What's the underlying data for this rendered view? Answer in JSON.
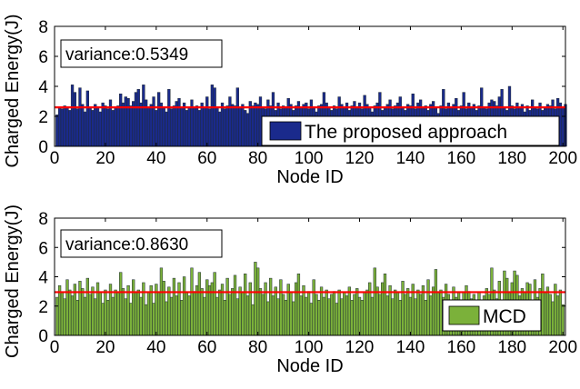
{
  "chart_data": [
    {
      "type": "bar",
      "xlabel": "Node ID",
      "ylabel": "Charged Energy(J)",
      "xlim": [
        0,
        201
      ],
      "ylim": [
        0,
        8
      ],
      "xticks": [
        0,
        20,
        40,
        60,
        80,
        100,
        120,
        140,
        160,
        180,
        200
      ],
      "yticks": [
        0,
        2,
        4,
        6,
        8
      ],
      "annotation": "variance:0.5349",
      "mean_line": 2.6,
      "series": [
        {
          "name": "The proposed approach",
          "color": "#1a2a8c",
          "values": [
            2.1,
            2.6,
            2.5,
            2.7,
            2.6,
            2.4,
            4.1,
            3.6,
            2.5,
            3.9,
            2.8,
            2.3,
            3.7,
            2.6,
            2.4,
            2.8,
            2.6,
            2.3,
            2.9,
            2.7,
            2.5,
            3.1,
            2.4,
            2.6,
            2.7,
            3.5,
            2.9,
            3.3,
            3.2,
            2.7,
            3.0,
            3.6,
            3.8,
            2.9,
            4.1,
            3.1,
            2.6,
            2.8,
            3.3,
            2.4,
            3.6,
            2.9,
            2.6,
            2.3,
            3.8,
            2.5,
            2.7,
            3.0,
            3.2,
            2.6,
            2.9,
            2.4,
            2.6,
            3.1,
            2.6,
            2.7,
            2.4,
            2.9,
            2.6,
            3.3,
            2.5,
            4.1,
            3.9,
            2.6,
            2.3,
            2.9,
            2.5,
            2.7,
            3.3,
            2.8,
            2.7,
            3.9,
            2.6,
            2.8,
            2.4,
            2.2,
            3.0,
            2.7,
            2.9,
            2.8,
            3.3,
            2.6,
            2.5,
            3.1,
            2.7,
            3.6,
            2.4,
            2.9,
            2.5,
            2.7,
            2.6,
            3.2,
            2.8,
            2.4,
            2.7,
            3.0,
            2.6,
            2.8,
            2.9,
            2.5,
            3.1,
            2.6,
            2.3,
            2.7,
            2.8,
            3.6,
            2.9,
            2.6,
            2.4,
            2.7,
            2.5,
            3.3,
            2.8,
            2.6,
            2.9,
            2.4,
            2.7,
            3.0,
            2.6,
            2.9,
            2.5,
            3.4,
            2.8,
            2.6,
            2.3,
            2.7,
            2.9,
            3.6,
            2.4,
            2.6,
            2.8,
            3.1,
            2.5,
            2.7,
            2.9,
            3.3,
            2.6,
            2.4,
            2.8,
            2.7,
            3.5,
            2.5,
            2.9,
            3.1,
            2.6,
            2.7,
            2.4,
            2.8,
            3.0,
            2.6,
            2.2,
            2.7,
            3.8,
            2.5,
            2.9,
            2.6,
            2.8,
            3.2,
            2.4,
            2.7,
            3.6,
            2.5,
            2.9,
            2.6,
            2.8,
            2.4,
            2.7,
            3.9,
            2.6,
            2.5,
            2.9,
            3.1,
            3.0,
            2.7,
            3.3,
            3.8,
            2.6,
            2.4,
            4.0,
            2.7,
            2.5,
            2.9,
            2.6,
            2.8,
            2.3,
            2.7,
            2.4,
            3.1,
            2.6,
            2.5,
            2.9,
            2.4,
            2.6,
            2.8,
            2.7,
            3.1,
            2.5,
            3.2,
            2.9,
            2.6,
            2.8
          ]
        }
      ]
    },
    {
      "type": "bar",
      "xlabel": "Node ID",
      "ylabel": "Charged Energy(J)",
      "xlim": [
        0,
        201
      ],
      "ylim": [
        0,
        8
      ],
      "xticks": [
        0,
        20,
        40,
        60,
        80,
        100,
        120,
        140,
        160,
        180,
        200
      ],
      "yticks": [
        0,
        2,
        4,
        6,
        8
      ],
      "annotation": "variance:0.8630",
      "mean_line": 2.95,
      "series": [
        {
          "name": "MCD",
          "color": "#7bb13a",
          "values": [
            2.6,
            3.4,
            2.9,
            2.5,
            3.8,
            3.1,
            2.7,
            3.5,
            2.4,
            3.7,
            3.2,
            2.6,
            3.9,
            2.8,
            3.3,
            2.5,
            3.6,
            2.9,
            2.2,
            3.1,
            2.4,
            3.5,
            2.6,
            3.1,
            2.9,
            4.3,
            3.2,
            2.5,
            3.4,
            2.2,
            3.8,
            2.9,
            3.1,
            2.6,
            3.6,
            2.1,
            2.9,
            3.4,
            2.2,
            3.5,
            2.9,
            4.6,
            3.7,
            2.3,
            3.3,
            2.6,
            3.9,
            2.7,
            3.6,
            2.4,
            4.0,
            2.9,
            2.7,
            4.6,
            3.0,
            3.4,
            4.3,
            3.2,
            2.6,
            3.8,
            3.4,
            3.6,
            4.3,
            2.6,
            3.1,
            3.5,
            2.4,
            3.9,
            2.8,
            3.2,
            4.1,
            2.5,
            3.3,
            2.9,
            4.2,
            2.7,
            3.6,
            2.1,
            5.0,
            4.6,
            3.2,
            2.8,
            3.6,
            2.3,
            3.9,
            2.7,
            3.3,
            2.5,
            3.8,
            2.8,
            2.4,
            3.5,
            2.9,
            2.3,
            3.6,
            4.2,
            2.7,
            3.4,
            2.6,
            3.0,
            2.2,
            3.8,
            2.8,
            2.4,
            3.3,
            2.6,
            3.1,
            2.5,
            2.8,
            3.0,
            2.2,
            3.1,
            2.5,
            2.9,
            2.7,
            3.3,
            2.4,
            2.8,
            3.2,
            2.6,
            2.4,
            2.9,
            3.1,
            3.6,
            2.6,
            4.6,
            3.3,
            2.8,
            3.6,
            4.2,
            2.7,
            3.4,
            2.5,
            3.1,
            2.9,
            2.4,
            3.7,
            2.8,
            3.2,
            2.6,
            3.5,
            2.5,
            3.1,
            2.8,
            3.4,
            2.4,
            3.8,
            2.7,
            3.3,
            4.5,
            2.9,
            3.1,
            2.6,
            3.5,
            2.8,
            2.4,
            3.3,
            2.6,
            2.9,
            2.3,
            2.9,
            3.4,
            3.0,
            2.5,
            2.8,
            2.3,
            2.9,
            2.4,
            2.7,
            3.2,
            2.8,
            4.6,
            3.1,
            2.5,
            3.7,
            2.4,
            4.4,
            3.9,
            2.9,
            3.6,
            4.4,
            4.1,
            2.7,
            3.2,
            2.9,
            3.6,
            3.5,
            2.4,
            3.8,
            2.6,
            3.2,
            4.2,
            2.9,
            3.3,
            2.8,
            2.3,
            3.5,
            2.7,
            3.1,
            2.1
          ]
        }
      ]
    }
  ]
}
